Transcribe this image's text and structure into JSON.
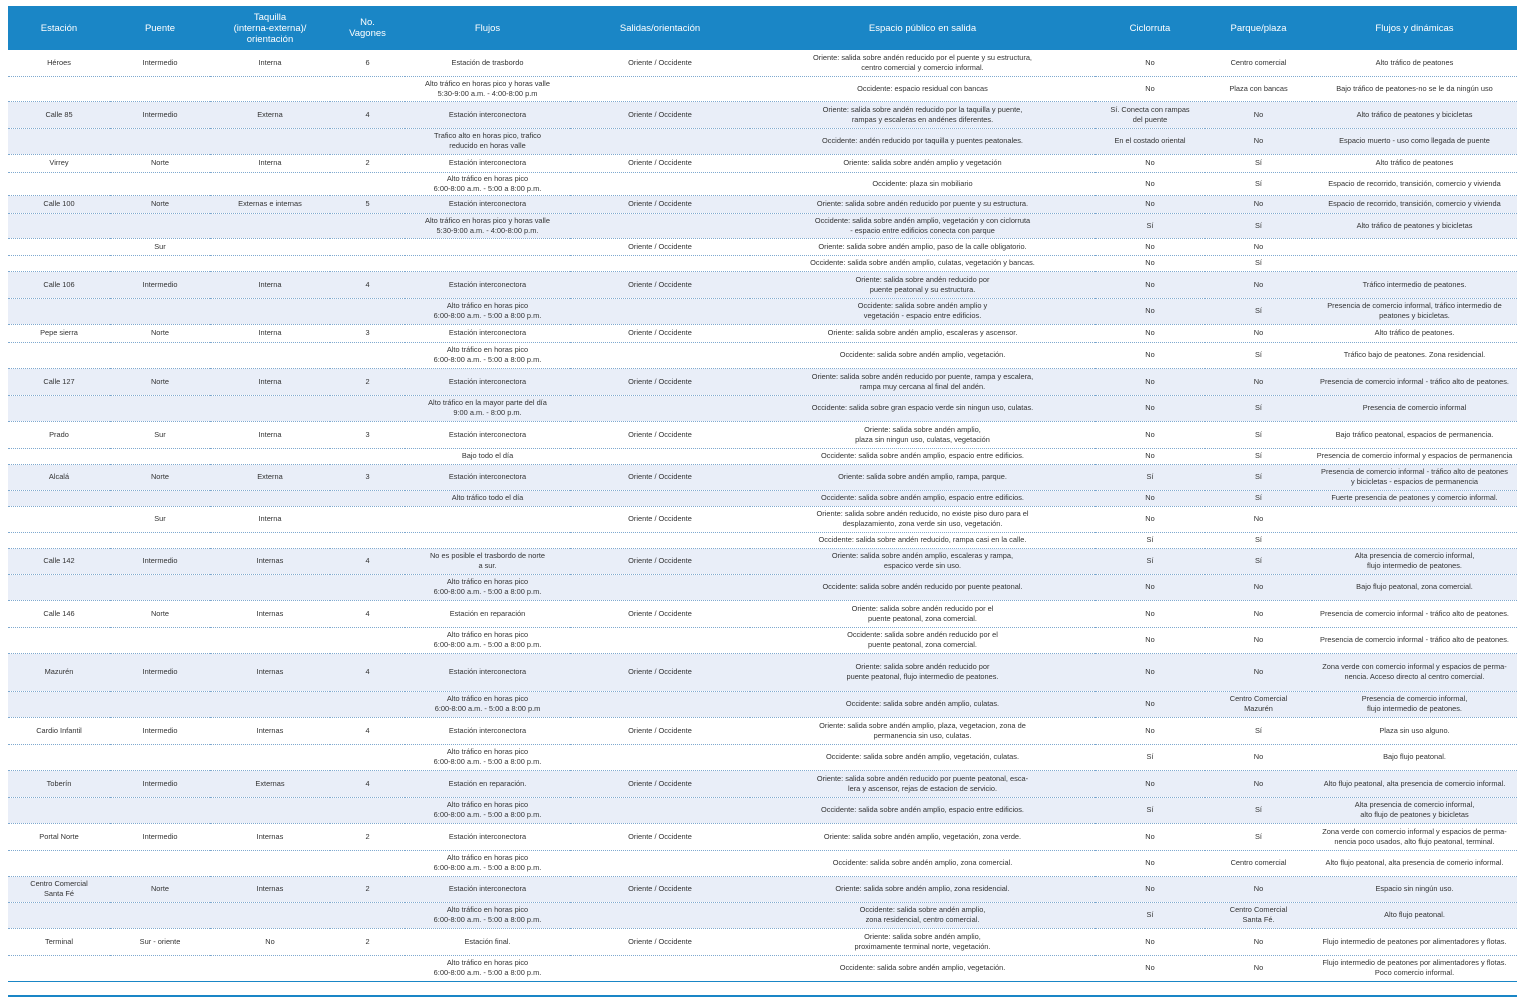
{
  "headers": [
    "Estación",
    "Puente",
    "Taquilla\n(interna-externa)/\norientación",
    "No.\nVagones",
    "Flujos",
    "Salidas/orientación",
    "Espacio público en salida",
    "Ciclorruta",
    "Parque/plaza",
    "Flujos y dinámicas"
  ],
  "rows": [
    {
      "estacion": "Héroes",
      "puente": "Intermedio",
      "taquilla": "Interna",
      "vagones": "6",
      "flujos": "Estación de trasbordo",
      "salidas": "Oriente / Occidente",
      "espacio": "Oriente: salida sobre andén reducido por el puente y su estructura,\ncentro comercial y comercio informal.",
      "ciclorruta": "No",
      "parque": "Centro comercial",
      "dinamicas": "Alto tráfico de peatones"
    },
    {
      "estacion": "",
      "puente": "",
      "taquilla": "",
      "vagones": "",
      "flujos": "Alto tráfico en horas pico y horas valle\n5:30-9:00 a.m. - 4:00-8:00 p.m",
      "salidas": "",
      "espacio": "Occidente: espacio residual con bancas",
      "ciclorruta": "No",
      "parque": "Plaza con bancas",
      "dinamicas": "Bajo tráfico de peatones-no se le da ningún uso"
    },
    {
      "estacion": "Calle 85",
      "puente": "Intermedio",
      "taquilla": "Externa",
      "vagones": "4",
      "flujos": "Estación interconectora",
      "salidas": "Oriente / Occidente",
      "espacio": "Oriente: salida sobre andén  reducido por la taquilla y puente,\nrampas y escaleras en andénes diferentes.",
      "ciclorruta": "Sí. Conecta con rampas\ndel puente",
      "parque": "No",
      "dinamicas": "Alto tráfico de peatones y bicicletas"
    },
    {
      "estacion": "",
      "puente": "",
      "taquilla": "",
      "vagones": "",
      "flujos": "Trafico alto en horas pico, trafico\nreducido en horas valle",
      "salidas": "",
      "espacio": "Occidente: andén  reducido por taquilla y puentes peatonales.",
      "ciclorruta": "En el costado oriental",
      "parque": "No",
      "dinamicas": "Espacio muerto - uso como llegada de puente"
    },
    {
      "estacion": "Virrey",
      "puente": "Norte",
      "taquilla": "Interna",
      "vagones": "2",
      "flujos": "Estación interconectora",
      "salidas": "Oriente / Occidente",
      "espacio": "Oriente: salida sobre andén amplio y vegetación",
      "ciclorruta": "No",
      "parque": "Sí",
      "dinamicas": "Alto tráfico de peatones"
    },
    {
      "estacion": "",
      "puente": "",
      "taquilla": "",
      "vagones": "",
      "flujos": "Alto tráfico en horas pico\n6:00-8:00 a.m. - 5:00 a 8:00 p.m.",
      "salidas": "",
      "espacio": "Occidente: plaza sin mobiliario",
      "ciclorruta": "No",
      "parque": "Sí",
      "dinamicas": "Espacio de recorrido, transición, comercio y vivienda"
    },
    {
      "estacion": "Calle 100",
      "puente": "Norte",
      "taquilla": "Externas e internas",
      "vagones": "5",
      "flujos": "Estación interconectora",
      "salidas": "Oriente / Occidente",
      "espacio": "Oriente: salida sobre andén reducido por puente y su estructura.",
      "ciclorruta": "No",
      "parque": "No",
      "dinamicas": "Espacio de recorrido, transición, comercio y vivienda"
    },
    {
      "estacion": "",
      "puente": "",
      "taquilla": "",
      "vagones": "",
      "flujos": "Alto tráfico en horas pico y horas valle\n5:30-9:00 a.m. - 4:00-8:00 p.m.",
      "salidas": "",
      "espacio": "Occidente:  salida sobre andén amplio, vegetación y con ciclorruta\n- espacio entre edificios conecta con parque",
      "ciclorruta": "Sí",
      "parque": "Sí",
      "dinamicas": "Alto tráfico de peatones y bicicletas"
    },
    {
      "estacion": "",
      "puente": "Sur",
      "taquilla": "",
      "vagones": "",
      "flujos": "",
      "salidas": "Oriente / Occidente",
      "espacio": "Oriente: salida sobre andén amplio, paso de la calle obligatorio.",
      "ciclorruta": "No",
      "parque": "No",
      "dinamicas": ""
    },
    {
      "estacion": "",
      "puente": "",
      "taquilla": "",
      "vagones": "",
      "flujos": "",
      "salidas": "",
      "espacio": "Occidente: salida sobre andén amplio, culatas, vegetación y bancas.",
      "ciclorruta": "No",
      "parque": "Sí",
      "dinamicas": ""
    },
    {
      "estacion": "Calle 106",
      "puente": "Intermedio",
      "taquilla": "Interna",
      "vagones": "4",
      "flujos": "Estación interconectora",
      "salidas": "Oriente / Occidente",
      "espacio": "Oriente: salida sobre andén reducido por\npuente peatonal y su estructura.",
      "ciclorruta": "No",
      "parque": "No",
      "dinamicas": "Tráfico intermedio de peatones."
    },
    {
      "estacion": "",
      "puente": "",
      "taquilla": "",
      "vagones": "",
      "flujos": "Alto tráfico en horas pico\n6:00-8:00 a.m. - 5:00 a 8:00 p.m.",
      "salidas": "",
      "espacio": "Occidente:  salida sobre andén amplio y\nvegetación - espacio entre edificios.",
      "ciclorruta": "No",
      "parque": "Sí",
      "dinamicas": "Presencia de comercio informal, tráfico intermedio de\npeatones y bicicletas."
    },
    {
      "estacion": "Pepe sierra",
      "puente": "Norte",
      "taquilla": "Interna",
      "vagones": "3",
      "flujos": "Estación interconectora",
      "salidas": "Oriente / Occidente",
      "espacio": "Oriente: salida sobre andén amplio, escaleras y ascensor.",
      "ciclorruta": "No",
      "parque": "No",
      "dinamicas": "Alto tráfico de peatones."
    },
    {
      "estacion": "",
      "puente": "",
      "taquilla": "",
      "vagones": "",
      "flujos": "Alto tráfico en horas pico\n6:00-8:00 a.m. - 5:00 a 8:00 p.m.",
      "salidas": "",
      "espacio": "Occidente: salida sobre andén amplio, vegetación.",
      "ciclorruta": "No",
      "parque": "Sí",
      "dinamicas": "Tráfico bajo de peatones. Zona residencial."
    },
    {
      "estacion": "Calle 127",
      "puente": "Norte",
      "taquilla": "Interna",
      "vagones": "2",
      "flujos": "Estación interconectora",
      "salidas": "Oriente / Occidente",
      "espacio": "Oriente: salida sobre andén reducido por puente, rampa y escalera,\nrampa muy cercana al final del andén.",
      "ciclorruta": "No",
      "parque": "No",
      "dinamicas": "Presencia de comercio informal - tráfico alto  de peatones."
    },
    {
      "estacion": "",
      "puente": "",
      "taquilla": "",
      "vagones": "",
      "flujos": "Alto tráfico en la mayor parte del día\n9:00 a.m. - 8:00 p.m.",
      "salidas": "",
      "espacio": "Occidente: salida sobre gran espacio verde sin ningun uso, culatas.",
      "ciclorruta": "No",
      "parque": "Sí",
      "dinamicas": "Presencia de comercio informal"
    },
    {
      "estacion": "Prado",
      "puente": "Sur",
      "taquilla": "Interna",
      "vagones": "3",
      "flujos": "Estación interconectora",
      "salidas": "Oriente / Occidente",
      "espacio": "Oriente: salida sobre andén amplio,\nplaza sin ningun uso, culatas, vegetación",
      "ciclorruta": "No",
      "parque": "Sí",
      "dinamicas": "Bajo tráfico peatonal, espacios de permanencia."
    },
    {
      "estacion": "",
      "puente": "",
      "taquilla": "",
      "vagones": "",
      "flujos": "Bajo todo el día",
      "salidas": "",
      "espacio": "Occidente: salida sobre andén amplio, espacio entre edificios.",
      "ciclorruta": "No",
      "parque": "Sí",
      "dinamicas": "Presencia de comercio informal y espacios de permanencia"
    },
    {
      "estacion": "Alcalá",
      "puente": "Norte",
      "taquilla": "Externa",
      "vagones": "3",
      "flujos": "Estación interconectora",
      "salidas": "Oriente / Occidente",
      "espacio": "Oriente: salida sobre andén amplio, rampa, parque.",
      "ciclorruta": "Sí",
      "parque": "Sí",
      "dinamicas": "Presencia de comercio informal - tráfico alto  de peatones\ny bicicletas - espacios de permanencia"
    },
    {
      "estacion": "",
      "puente": "",
      "taquilla": "",
      "vagones": "",
      "flujos": "Alto tráfico todo el día",
      "salidas": "",
      "espacio": "Occidente: salida sobre andén amplio, espacio entre edificios.",
      "ciclorruta": "No",
      "parque": "Sí",
      "dinamicas": "Fuerte presencia de peatones y comercio informal."
    },
    {
      "estacion": "",
      "puente": "Sur",
      "taquilla": "Interna",
      "vagones": "",
      "flujos": "",
      "salidas": "Oriente / Occidente",
      "espacio": "Oriente: salida sobre andén reducido, no existe piso duro para el\ndesplazamiento, zona verde sin uso, vegetación.",
      "ciclorruta": "No",
      "parque": "No",
      "dinamicas": ""
    },
    {
      "estacion": "",
      "puente": "",
      "taquilla": "",
      "vagones": "",
      "flujos": "",
      "salidas": "",
      "espacio": "Occidente: salida sobre andén reducido, rampa casi en la calle.",
      "ciclorruta": "Sí",
      "parque": "Sí",
      "dinamicas": ""
    },
    {
      "estacion": "Calle 142",
      "puente": "Intermedio",
      "taquilla": "Internas",
      "vagones": "4",
      "flujos": "No es posible el trasbordo de norte\na sur.",
      "salidas": "Oriente / Occidente",
      "espacio": "Oriente: salida sobre andén amplio, escaleras y rampa,\nespacico verde sin uso.",
      "ciclorruta": "Sí",
      "parque": "Sí",
      "dinamicas": "Alta presencia de comercio informal,\nflujo intermedio de peatones."
    },
    {
      "estacion": "",
      "puente": "",
      "taquilla": "",
      "vagones": "",
      "flujos": "Alto tráfico en horas pico\n6:00-8:00 a.m. - 5:00 a 8:00 p.m.",
      "salidas": "",
      "espacio": "Occidente: salida sobre andén reducido por puente peatonal.",
      "ciclorruta": "No",
      "parque": "No",
      "dinamicas": "Bajo flujo peatonal, zona comercial."
    },
    {
      "estacion": "Calle 146",
      "puente": "Norte",
      "taquilla": "Internas",
      "vagones": "4",
      "flujos": "Estación en reparación",
      "salidas": "Oriente / Occidente",
      "espacio": "Oriente: salida sobre andén reducido por el\npuente peatonal, zona comercial.",
      "ciclorruta": "No",
      "parque": "No",
      "dinamicas": "Presencia de comercio informal - tráfico alto  de peatones."
    },
    {
      "estacion": "",
      "puente": "",
      "taquilla": "",
      "vagones": "",
      "flujos": "Alto tráfico en horas pico\n6:00-8:00 a.m. - 5:00 a 8:00 p.m.",
      "salidas": "",
      "espacio": "Occidente: salida sobre andén reducido por el\npuente peatonal, zona comercial.",
      "ciclorruta": "No",
      "parque": "No",
      "dinamicas": "Presencia de comercio informal - tráfico alto  de peatones."
    },
    {
      "estacion": "Mazurén",
      "puente": "Intermedio",
      "taquilla": "Internas",
      "vagones": "4",
      "flujos": "Estación interconectora",
      "salidas": "Oriente / Occidente",
      "espacio": "Oriente: salida sobre andén reducido por\npuente peatonal, flujo intermedio de peatones.",
      "ciclorruta": "No",
      "parque": "No",
      "dinamicas": "Zona verde con comercio informal y espacios de perma-\nnencia. Acceso directo al centro comercial."
    },
    {
      "estacion": "",
      "puente": "",
      "taquilla": "",
      "vagones": "",
      "flujos": "Alto tráfico en horas pico\n6:00-8:00 a.m. - 5:00 a 8:00 p.m",
      "salidas": "",
      "espacio": "Occidente: salida sobre andén amplio, culatas.",
      "ciclorruta": "No",
      "parque": "Centro Comercial\nMazurén",
      "dinamicas": "Presencia de comercio informal,\nflujo intermedio de peatones."
    },
    {
      "estacion": "Cardio Infantil",
      "puente": "Intermedio",
      "taquilla": "Internas",
      "vagones": "4",
      "flujos": "Estación interconectora",
      "salidas": "Oriente / Occidente",
      "espacio": "Oriente: salida sobre andén amplio, plaza, vegetacion, zona de\npermanencia sin uso, culatas.",
      "ciclorruta": "No",
      "parque": "Sí",
      "dinamicas": "Plaza sin uso alguno."
    },
    {
      "estacion": "",
      "puente": "",
      "taquilla": "",
      "vagones": "",
      "flujos": "Alto tráfico en horas pico\n6:00-8:00 a.m. - 5:00 a 8:00 p.m.",
      "salidas": "",
      "espacio": "Occidente: salida sobre andén amplio, vegetación, culatas.",
      "ciclorruta": "Sí",
      "parque": "No",
      "dinamicas": "Bajo flujo peatonal."
    },
    {
      "estacion": "Toberín",
      "puente": "Intermedio",
      "taquilla": "Externas",
      "vagones": "4",
      "flujos": "Estación en reparación.",
      "salidas": "Oriente / Occidente",
      "espacio": "Oriente: salida sobre andén reducido por puente peatonal, esca-\nlera y ascensor, rejas de estacion de servicio.",
      "ciclorruta": "No",
      "parque": "No",
      "dinamicas": "Alto flujo peatonal, alta presencia de comercio informal."
    },
    {
      "estacion": "",
      "puente": "",
      "taquilla": "",
      "vagones": "",
      "flujos": "Alto tráfico en horas pico\n6:00-8:00 a.m. - 5:00 a 8:00 p.m.",
      "salidas": "",
      "espacio": "Occidente: salida sobre andén amplio, espacio entre edificios.",
      "ciclorruta": "Sí",
      "parque": "Sí",
      "dinamicas": "Alta presencia de comercio informal,\nalto flujo de peatones y bicicletas"
    },
    {
      "estacion": "Portal Norte",
      "puente": "Intermedio",
      "taquilla": "Internas",
      "vagones": "2",
      "flujos": "Estación interconectora",
      "salidas": "Oriente / Occidente",
      "espacio": "Oriente: salida sobre andén amplio, vegetación, zona verde.",
      "ciclorruta": "No",
      "parque": "Sí",
      "dinamicas": "Zona verde con comercio informal y espacios de perma-\nnencia poco usados, alto flujo peatonal, terminal."
    },
    {
      "estacion": "",
      "puente": "",
      "taquilla": "",
      "vagones": "",
      "flujos": "Alto tráfico en horas pico\n6:00-8:00 a.m. - 5:00 a 8:00 p.m.",
      "salidas": "",
      "espacio": "Occidente: salida sobre andén amplio, zona comercial.",
      "ciclorruta": "No",
      "parque": "Centro comercial",
      "dinamicas": "Alto flujo peatonal, alta presencia de comerio informal."
    },
    {
      "estacion": "Centro Comercial\nSanta Fé",
      "puente": "Norte",
      "taquilla": "Internas",
      "vagones": "2",
      "flujos": "Estación interconectora",
      "salidas": "Oriente / Occidente",
      "espacio": "Oriente: salida sobre andén amplio, zona residencial.",
      "ciclorruta": "No",
      "parque": "No",
      "dinamicas": "Espacio sin ningún uso."
    },
    {
      "estacion": "",
      "puente": "",
      "taquilla": "",
      "vagones": "",
      "flujos": "Alto tráfico en horas pico\n6:00-8:00 a.m. - 5:00 a 8:00 p.m.",
      "salidas": "",
      "espacio": "Occidente: salida sobre andén amplio,\nzona residencial, centro comercial.",
      "ciclorruta": "Sí",
      "parque": "Centro Comercial\nSanta Fé.",
      "dinamicas": "Alto flujo peatonal."
    },
    {
      "estacion": "Terminal",
      "puente": "Sur - oriente",
      "taquilla": "No",
      "vagones": "2",
      "flujos": "Estación final.",
      "salidas": "Oriente / Occidente",
      "espacio": "Oriente: salida sobre andén amplio,\nproximamente terminal norte, vegetación.",
      "ciclorruta": "No",
      "parque": "No",
      "dinamicas": "Flujo intermedio de peatones por alimentadores y flotas."
    },
    {
      "estacion": "",
      "puente": "",
      "taquilla": "",
      "vagones": "",
      "flujos": "Alto tráfico en horas pico\n6:00-8:00 a.m. - 5:00 a 8:00 p.m.",
      "salidas": "",
      "espacio": "Occidente: salida sobre andén amplio, vegetación.",
      "ciclorruta": "No",
      "parque": "No",
      "dinamicas": "Flujo intermedio de peatones por alimentadores y flotas.\nPoco comercio informal."
    }
  ]
}
